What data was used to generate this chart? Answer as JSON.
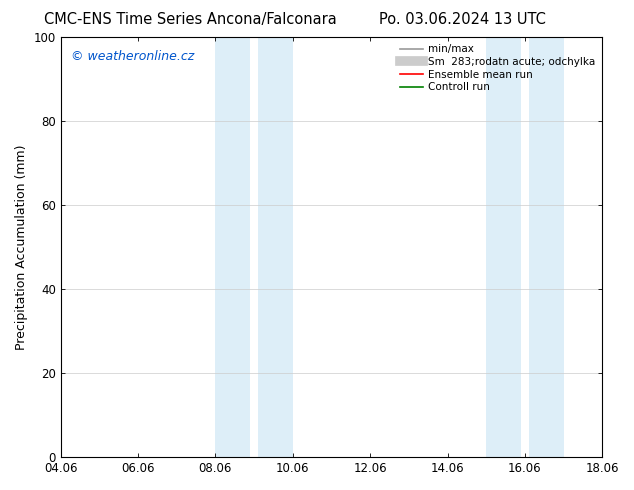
{
  "title_left": "CMC-ENS Time Series Ancona/Falconara",
  "title_right": "Po. 03.06.2024 13 UTC",
  "ylabel": "Precipitation Accumulation (mm)",
  "ylim": [
    0,
    100
  ],
  "xlim": [
    0,
    14
  ],
  "xtick_labels": [
    "04.06",
    "06.06",
    "08.06",
    "10.06",
    "12.06",
    "14.06",
    "16.06",
    "18.06"
  ],
  "xtick_positions": [
    0,
    2,
    4,
    6,
    8,
    10,
    12,
    14
  ],
  "ytick_labels": [
    "0",
    "20",
    "40",
    "60",
    "80",
    "100"
  ],
  "ytick_positions": [
    0,
    20,
    40,
    60,
    80,
    100
  ],
  "shaded_regions": [
    {
      "x_start": 4.0,
      "x_end": 4.9,
      "color": "#ddeef8"
    },
    {
      "x_start": 5.1,
      "x_end": 6.0,
      "color": "#ddeef8"
    },
    {
      "x_start": 11.0,
      "x_end": 11.9,
      "color": "#ddeef8"
    },
    {
      "x_start": 12.1,
      "x_end": 13.0,
      "color": "#ddeef8"
    }
  ],
  "watermark_text": "© weatheronline.cz",
  "watermark_color": "#0055cc",
  "legend_entries": [
    {
      "label": "min/max",
      "color": "#999999",
      "lw": 1.2
    },
    {
      "label": "Sm  283;rodatn acute; odchylka",
      "color": "#cccccc",
      "lw": 7
    },
    {
      "label": "Ensemble mean run",
      "color": "#ff0000",
      "lw": 1.2
    },
    {
      "label": "Controll run",
      "color": "#008000",
      "lw": 1.2
    }
  ],
  "background_color": "#ffffff",
  "title_fontsize": 10.5,
  "ylabel_fontsize": 9,
  "tick_fontsize": 8.5,
  "watermark_fontsize": 9,
  "legend_fontsize": 7.5
}
